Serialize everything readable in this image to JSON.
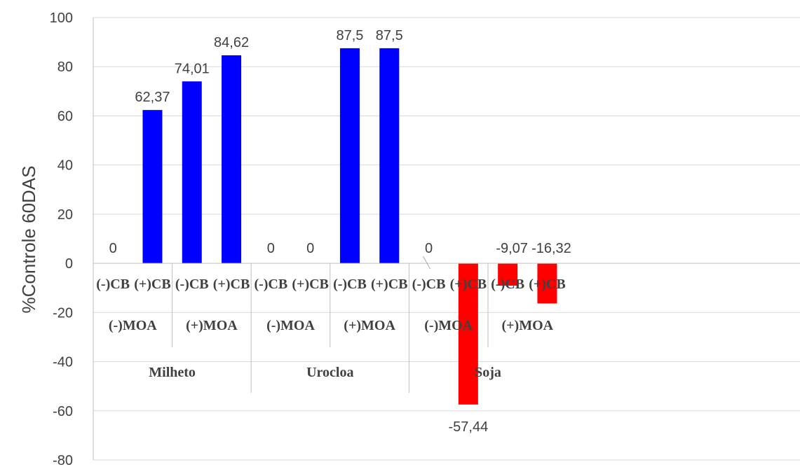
{
  "chart_data": {
    "type": "bar",
    "ylabel": "%Controle 60DAS",
    "ylim": [
      -80,
      100
    ],
    "yticks": [
      -80,
      -60,
      -40,
      -20,
      0,
      20,
      40,
      60,
      80,
      100
    ],
    "grid": true,
    "legend": "none",
    "groups": [
      {
        "label": "Milheto",
        "subgroups": [
          {
            "label": "(-)MOA",
            "bars": [
              {
                "label": "(-)CB",
                "value": 0,
                "value_label": "0"
              },
              {
                "label": "(+)CB",
                "value": 62.37,
                "value_label": "62,37"
              }
            ]
          },
          {
            "label": "(+)MOA",
            "bars": [
              {
                "label": "(-)CB",
                "value": 74.01,
                "value_label": "74,01"
              },
              {
                "label": "(+)CB",
                "value": 84.62,
                "value_label": "84,62"
              }
            ]
          }
        ]
      },
      {
        "label": "Urocloa",
        "subgroups": [
          {
            "label": "(-)MOA",
            "bars": [
              {
                "label": "(-)CB",
                "value": 0,
                "value_label": "0"
              },
              {
                "label": "(+)CB",
                "value": 0,
                "value_label": "0"
              }
            ]
          },
          {
            "label": "(+)MOA",
            "bars": [
              {
                "label": "(-)CB",
                "value": 87.5,
                "value_label": "87,5"
              },
              {
                "label": "(+)CB",
                "value": 87.5,
                "value_label": "87,5"
              }
            ]
          }
        ]
      },
      {
        "label": "Soja",
        "subgroups": [
          {
            "label": "(-)MOA",
            "bars": [
              {
                "label": "(-)CB",
                "value": 0,
                "value_label": "0"
              },
              {
                "label": "(+)CB",
                "value": -57.44,
                "value_label": "-57,44"
              }
            ]
          },
          {
            "label": "(+)MOA",
            "bars": [
              {
                "label": "(-)CB",
                "value": -9.07,
                "value_label": "-9,07"
              },
              {
                "label": "(+)CB",
                "value": -16.32,
                "value_label": "-16,32"
              }
            ]
          }
        ]
      }
    ],
    "colors": {
      "positive": "#0000ff",
      "negative": "#ff0000",
      "grid": "#d9d9d9",
      "axis": "#bfbfbf",
      "text": "#404040"
    }
  }
}
